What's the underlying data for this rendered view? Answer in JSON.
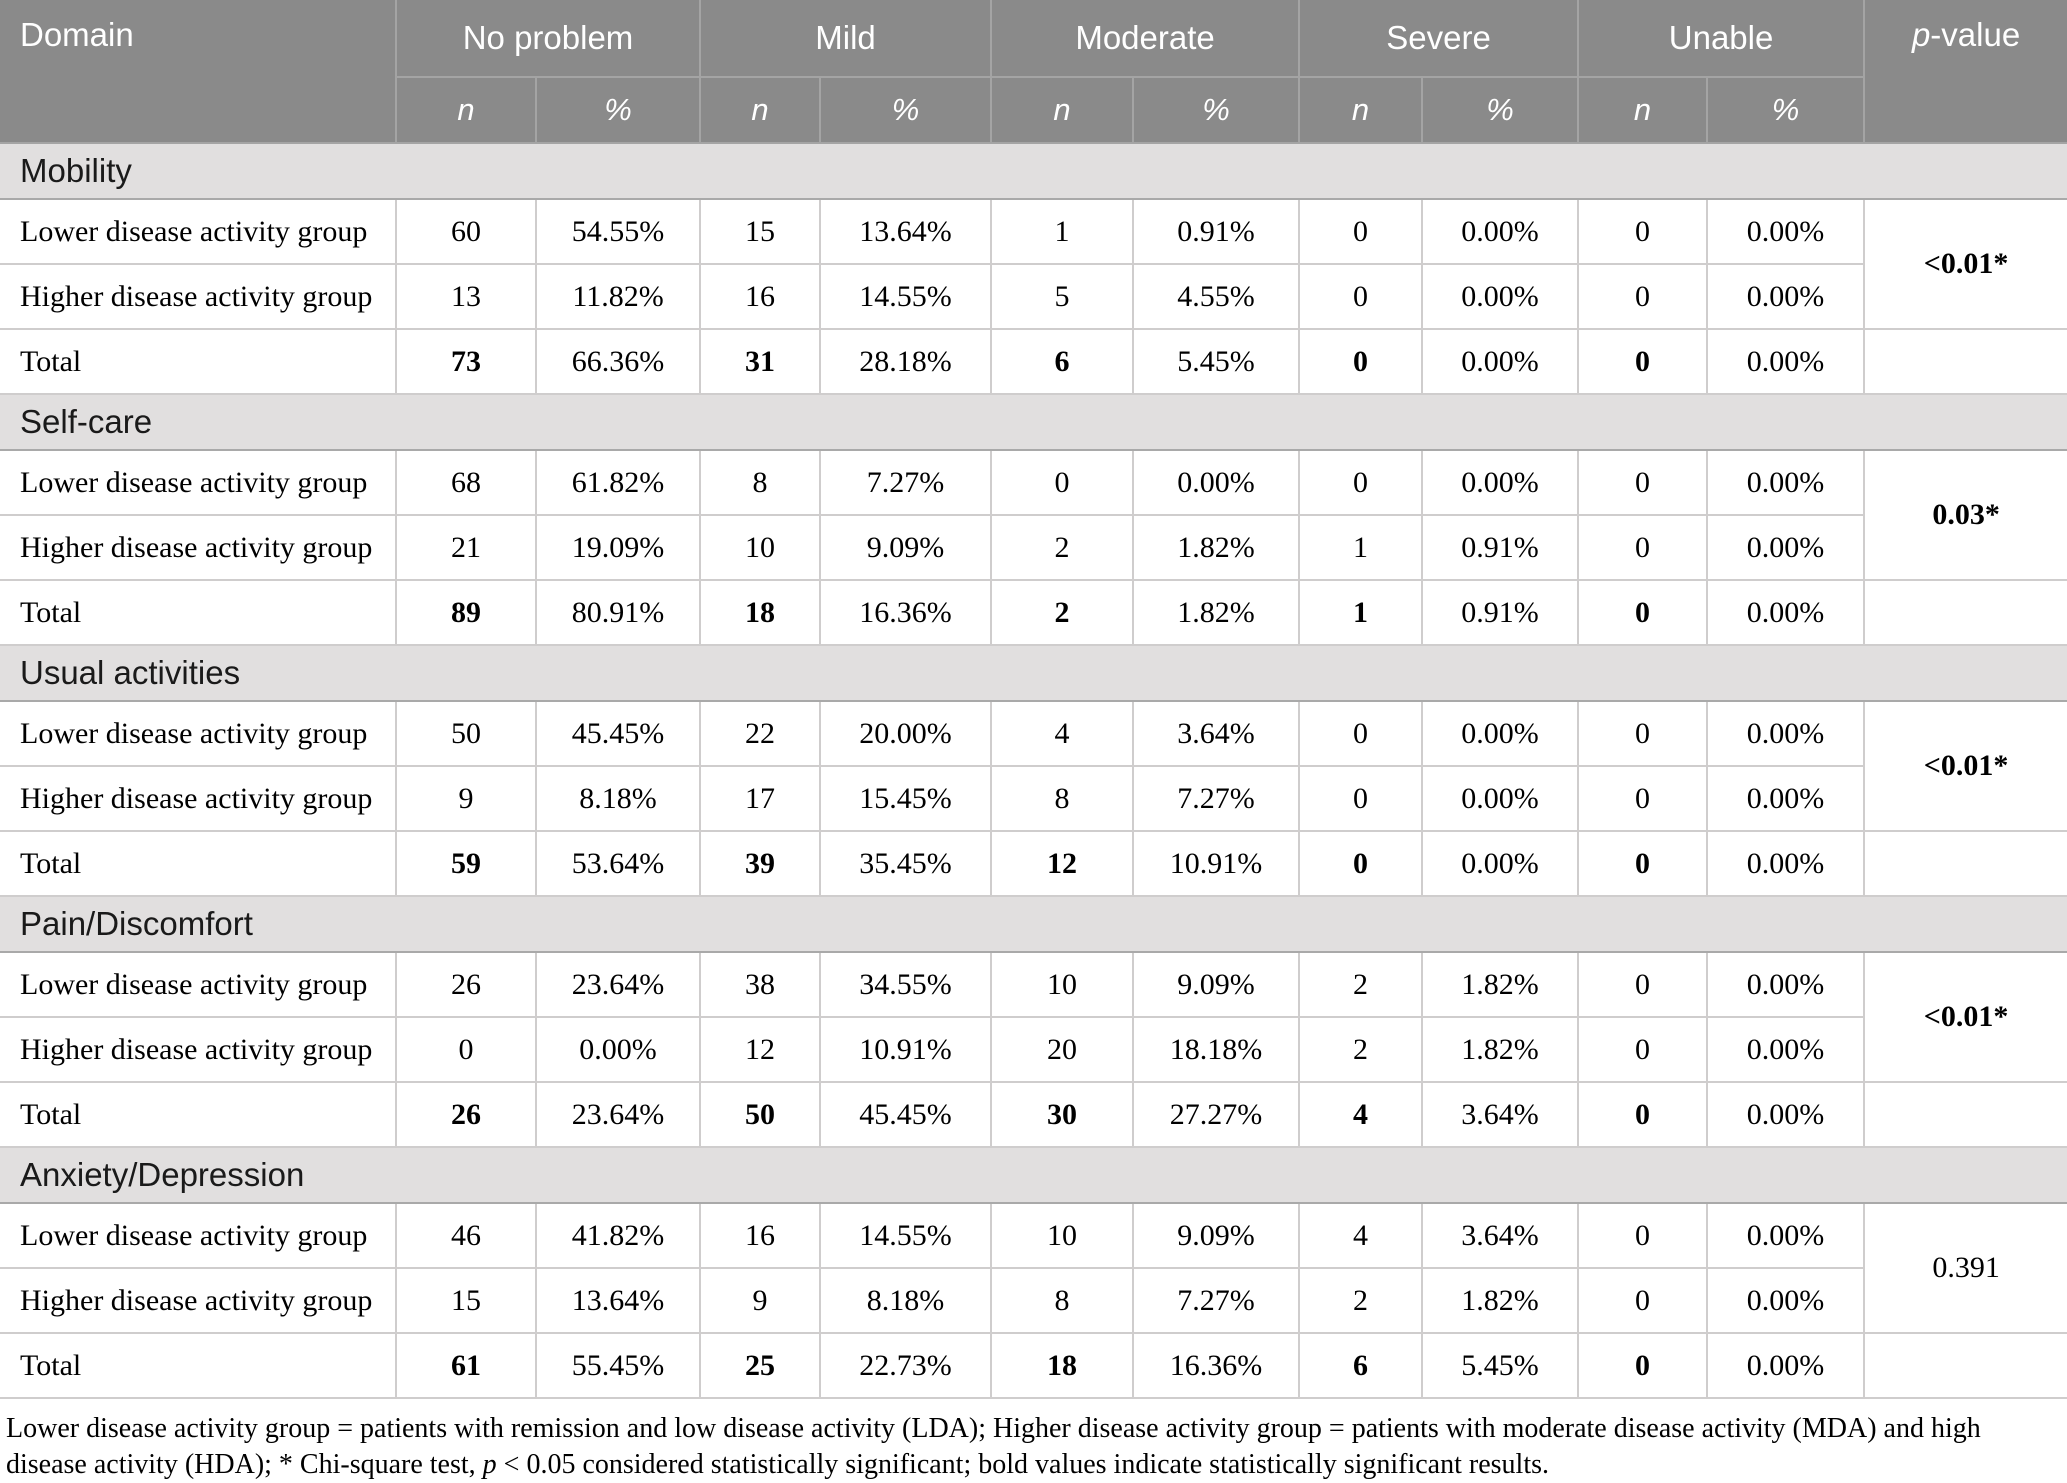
{
  "colors": {
    "header_bg": "#8a8a8a",
    "header_text": "#ffffff",
    "section_bg": "#e1dfdf",
    "cell_border": "#cfcdcd"
  },
  "table": {
    "header": {
      "domain": "Domain",
      "groups": [
        {
          "label": "No problem"
        },
        {
          "label": "Mild"
        },
        {
          "label": "Moderate"
        },
        {
          "label": "Severe"
        },
        {
          "label": "Unable"
        }
      ],
      "sub_n": "n",
      "sub_pct": "%",
      "p_value": "p-value"
    },
    "sections": [
      {
        "name": "Mobility",
        "p_value": "<0.01*",
        "p_bold": true,
        "rows": [
          {
            "label": "Lower disease activity group",
            "total": false,
            "values": [
              "60",
              "54.55%",
              "15",
              "13.64%",
              "1",
              "0.91%",
              "0",
              "0.00%",
              "0",
              "0.00%"
            ]
          },
          {
            "label": "Higher disease activity group",
            "total": false,
            "values": [
              "13",
              "11.82%",
              "16",
              "14.55%",
              "5",
              "4.55%",
              "0",
              "0.00%",
              "0",
              "0.00%"
            ]
          },
          {
            "label": "Total",
            "total": true,
            "values": [
              "73",
              "66.36%",
              "31",
              "28.18%",
              "6",
              "5.45%",
              "0",
              "0.00%",
              "0",
              "0.00%"
            ]
          }
        ]
      },
      {
        "name": "Self-care",
        "p_value": "0.03*",
        "p_bold": true,
        "rows": [
          {
            "label": "Lower disease activity group",
            "total": false,
            "values": [
              "68",
              "61.82%",
              "8",
              "7.27%",
              "0",
              "0.00%",
              "0",
              "0.00%",
              "0",
              "0.00%"
            ]
          },
          {
            "label": "Higher disease activity group",
            "total": false,
            "values": [
              "21",
              "19.09%",
              "10",
              "9.09%",
              "2",
              "1.82%",
              "1",
              "0.91%",
              "0",
              "0.00%"
            ]
          },
          {
            "label": "Total",
            "total": true,
            "values": [
              "89",
              "80.91%",
              "18",
              "16.36%",
              "2",
              "1.82%",
              "1",
              "0.91%",
              "0",
              "0.00%"
            ]
          }
        ]
      },
      {
        "name": "Usual activities",
        "p_value": "<0.01*",
        "p_bold": true,
        "rows": [
          {
            "label": "Lower disease activity group",
            "total": false,
            "values": [
              "50",
              "45.45%",
              "22",
              "20.00%",
              "4",
              "3.64%",
              "0",
              "0.00%",
              "0",
              "0.00%"
            ]
          },
          {
            "label": "Higher disease activity group",
            "total": false,
            "values": [
              "9",
              "8.18%",
              "17",
              "15.45%",
              "8",
              "7.27%",
              "0",
              "0.00%",
              "0",
              "0.00%"
            ]
          },
          {
            "label": "Total",
            "total": true,
            "values": [
              "59",
              "53.64%",
              "39",
              "35.45%",
              "12",
              "10.91%",
              "0",
              "0.00%",
              "0",
              "0.00%"
            ]
          }
        ]
      },
      {
        "name": "Pain/Discomfort",
        "p_value": "<0.01*",
        "p_bold": true,
        "rows": [
          {
            "label": "Lower disease activity group",
            "total": false,
            "values": [
              "26",
              "23.64%",
              "38",
              "34.55%",
              "10",
              "9.09%",
              "2",
              "1.82%",
              "0",
              "0.00%"
            ]
          },
          {
            "label": "Higher disease activity group",
            "total": false,
            "values": [
              "0",
              "0.00%",
              "12",
              "10.91%",
              "20",
              "18.18%",
              "2",
              "1.82%",
              "0",
              "0.00%"
            ]
          },
          {
            "label": "Total",
            "total": true,
            "values": [
              "26",
              "23.64%",
              "50",
              "45.45%",
              "30",
              "27.27%",
              "4",
              "3.64%",
              "0",
              "0.00%"
            ]
          }
        ]
      },
      {
        "name": "Anxiety/Depression",
        "p_value": "0.391",
        "p_bold": false,
        "rows": [
          {
            "label": "Lower disease activity group",
            "total": false,
            "values": [
              "46",
              "41.82%",
              "16",
              "14.55%",
              "10",
              "9.09%",
              "4",
              "3.64%",
              "0",
              "0.00%"
            ]
          },
          {
            "label": "Higher disease activity group",
            "total": false,
            "values": [
              "15",
              "13.64%",
              "9",
              "8.18%",
              "8",
              "7.27%",
              "2",
              "1.82%",
              "0",
              "0.00%"
            ]
          },
          {
            "label": "Total",
            "total": true,
            "values": [
              "61",
              "55.45%",
              "25",
              "22.73%",
              "18",
              "16.36%",
              "6",
              "5.45%",
              "0",
              "0.00%"
            ]
          }
        ]
      }
    ],
    "footnote_segments": [
      {
        "text": "Lower disease activity group = patients with remission and low disease activity (LDA); Higher disease activity group = patients with moderate disease activity (MDA) and high disease activity (HDA); * Chi-square test, ",
        "italic": false
      },
      {
        "text": "p",
        "italic": true
      },
      {
        "text": " < 0.05 considered statistically significant; bold values indicate statistically significant results.",
        "italic": false
      }
    ]
  }
}
